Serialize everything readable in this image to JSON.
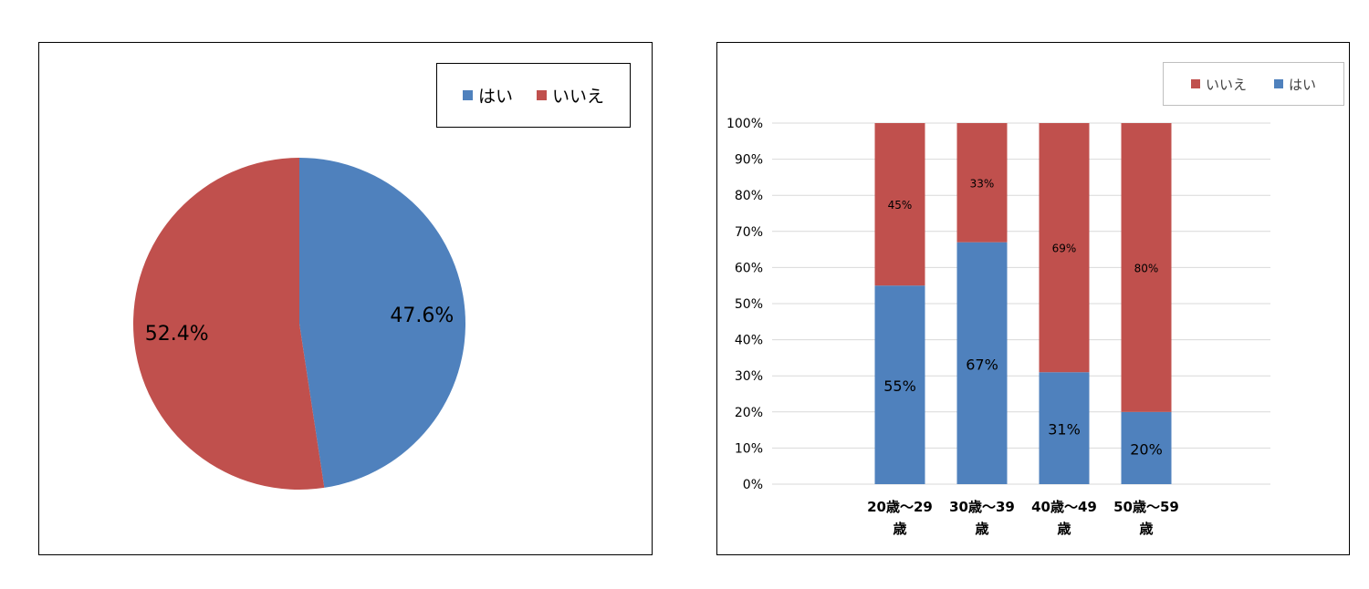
{
  "colors": {
    "hai": "#4f81bd",
    "iie": "#c0504d",
    "grid": "#d9d9d9"
  },
  "chart_data": [
    {
      "type": "pie",
      "title": "",
      "slices": [
        {
          "label": "はい",
          "value": 47.6,
          "display": "47.6%",
          "color": "#4f81bd"
        },
        {
          "label": "いいえ",
          "value": 52.4,
          "display": "52.4%",
          "color": "#c0504d"
        }
      ],
      "legend": {
        "position": "top-right",
        "entries": [
          "はい",
          "いいえ"
        ]
      }
    },
    {
      "type": "bar",
      "stacked": "percent",
      "title": "",
      "categories": [
        {
          "line1": "20歳～29",
          "line2": "歳"
        },
        {
          "line1": "30歳～39",
          "line2": "歳"
        },
        {
          "line1": "40歳～49",
          "line2": "歳"
        },
        {
          "line1": "50歳～59",
          "line2": "歳"
        }
      ],
      "series": [
        {
          "name": "はい",
          "color": "#4f81bd",
          "values": [
            55,
            67,
            31,
            20
          ],
          "labels": [
            "55%",
            "67%",
            "31%",
            "20%"
          ]
        },
        {
          "name": "いいえ",
          "color": "#c0504d",
          "values": [
            45,
            33,
            69,
            80
          ],
          "labels": [
            "45%",
            "33%",
            "69%",
            "80%"
          ]
        }
      ],
      "ylim": [
        0,
        100
      ],
      "yticks": [
        "0%",
        "10%",
        "20%",
        "30%",
        "40%",
        "50%",
        "60%",
        "70%",
        "80%",
        "90%",
        "100%"
      ],
      "grid": true,
      "legend": {
        "position": "top-right",
        "entries": [
          "いいえ",
          "はい"
        ]
      }
    }
  ]
}
